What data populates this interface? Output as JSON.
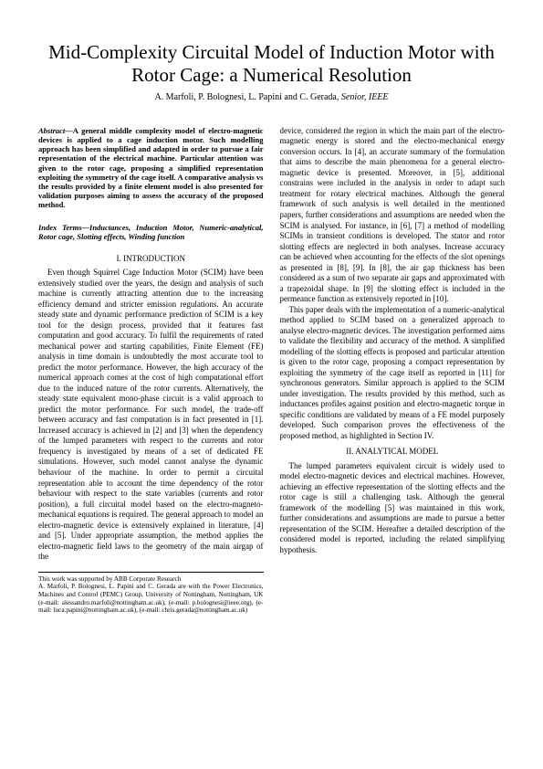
{
  "title": "Mid-Complexity Circuital Model of Induction Motor with Rotor Cage: a Numerical Resolution",
  "authors_prefix": "A. Marfoli,   P. Bolognesi,   L. Papini and C. Gerada, ",
  "authors_suffix": "Senior, IEEE",
  "abstract_label": "Abstract—",
  "abstract": "A general middle complexity model of electro-magnetic devices is applied to a cage induction motor. Such modelling approach has been simplified and adapted in order to pursue a fair representation of the electrical machine. Particular attention was given to the rotor cage, proposing a simplified representation exploiting the symmetry of the cage itself. A comparative analysis vs the results provided by a finite element model is also presented for validation purposes aiming to assess the accuracy of the proposed method.",
  "index_label": "Index Terms—",
  "index_terms": "Inductances, Induction Motor, Numeric-analytical, Rotor cage, Slotting effects, Winding function",
  "section1_heading": "I.  INTRODUCTION",
  "intro_p1": "Even though Squirrel Cage Induction Motor (SCIM) have been extensively studied over the years, the design and analysis of such machine is currently attracting attention due to the increasing efficiency demand and stricter emission regulations. An accurate steady state and dynamic performance prediction of SCIM is a key tool for the design process, provided that it features fast computation and good accuracy. To fulfil the requirements of rated mechanical power and starting capabilities, Finite Element (FE) analysis in time domain is undoubtedly the most accurate tool to predict the motor performance. However, the high accuracy of the numerical approach comes at the cost of high computational effort due to the induced nature of the rotor currents. Alternatively, the steady state equivalent mono-phase circuit is a valid approach to predict the motor performance. For such model, the trade-off between accuracy and fast computation is in fact presented in [1]. Increased accuracy is achieved in [2] and [3] when the dependency of the lumped parameters with respect to the currents and rotor frequency is investigated by means of a set of dedicated FE simulations. However, such model cannot analyse the dynamic behaviour of the machine. In order to permit a circuital representation able to account the time dependency of the rotor behaviour with respect to the state variables (currents and rotor position), a full circuital model based on the electro-magneto-mechanical equations is required. The general approach to model an electro-magnetic device is extensively explained in literature, [4] and [5]. Under appropriate assumption, the method applies the electro-magnetic field laws to the geometry of the main airgap of the",
  "col2_p1": "device, considered the region in which the main part of the electro-magnetic energy is stored and the electro-mechanical energy conversion occurs. In [4], an accurate summary of the formulation that aims to describe the main phenomena for a general electro-magnetic device is presented. Moreover, in [5], additional constrains were included in the analysis in order to adapt such treatment for rotary electrical machines. Although the general framework of such analysis is well detailed in the mentioned papers, further considerations and assumptions are needed when the SCIM is analysed. For instance, in [6], [7] a method of modelling SCIMs in transient conditions is developed. The stator and rotor slotting effects are neglected in both analyses. Increase accuracy can be achieved when accounting for the effects of the slot openings as presented in [8], [9]. In [8], the air gap thickness has been considered as a sum of two separate air gaps and approximated with a trapezoidal shape. In [9] the slotting effect is included in the permeance function as extensively reported in [10].",
  "col2_p2": "This paper deals with the implementation of a numeric-analytical method applied to SCIM based on a generalized approach to analyse electro-magnetic devices. The investigation performed aims to validate the flexibility and accuracy of the method. A simplified modelling of the slotting effects is proposed and particular attention is given to the rotor cage, proposing a compact representation by exploiting the symmetry of the cage itself as reported in [11] for synchronous generators. Similar approach is applied to the SCIM under investigation. The results provided by this method, such as inductances profiles against position and electro-magnetic torque in specific conditions are validated by means of a FE model purposely developed. Such comparison proves the effectiveness of the proposed method, as highlighted in Section IV.",
  "section2_heading": "II.  ANALYTICAL MODEL",
  "col2_p3": "The lumped parameters equivalent circuit is widely used to model electro-magnetic devices and electrical machines. However, achieving an effective representation of the slotting effects and the rotor cage is still a challenging task. Although the general framework of the modelling [5] was maintained in this work, further considerations and assumptions are made to pursue a better representation of the SCIM. Hereafter a detailed description of the considered model is reported, including the related simplifying hypothesis.",
  "footnote1": "This work was supported by ABB Corporate Research",
  "footnote2": "A. Marfoli, P. Bolognesi, L. Papini and C. Gerada are with the Power Electronics, Machines and Control (PEMC) Group, University of Nottingham, Nottingham, UK (e-mail: alessandro.marfoli@nottingham.ac.uk), (e-mail: p.bolognesi@ieee.org), (e-mail: luca.papini@nottingham.ac.uk), (e-mail: chris.gerada@nottingham.ac.uk)"
}
